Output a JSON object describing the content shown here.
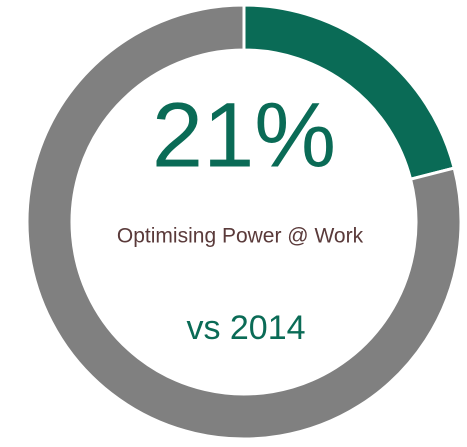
{
  "chart_data": {
    "type": "donut",
    "values": [
      21,
      79
    ],
    "value_labels": [
      "21%",
      null
    ],
    "colors": [
      "#0a6b56",
      "#808080"
    ],
    "logo": "Optimising Power @ Work",
    "footnote": "vs 2014"
  }
}
